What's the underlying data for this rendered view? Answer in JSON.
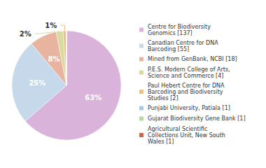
{
  "chart_data": {
    "type": "pie",
    "categories": [
      "Centre for Biodiversity\nGenomics [137]",
      "Canadian Centre for DNA\nBarcoding [55]",
      "Mined from GenBank, NCBI [18]",
      "P.E.S. Modern College of Arts,\nScience and Commerce [4]",
      "Paul Hebert Centre for DNA\nBarcoding and Biodiversity\nStudies [2]",
      "Punjabi University, Patiala [1]",
      "Gujarat Biodiversity Gene Bank [1]",
      "Agricultural Scientific\nCollections Unit, New South\nWales [1]"
    ],
    "values": [
      63,
      25,
      8,
      2,
      1,
      0,
      0,
      0
    ],
    "value_labels": [
      "63%",
      "25%",
      "8%",
      "2%",
      "1%",
      null,
      null,
      null
    ],
    "colors": [
      "#d9b3d9",
      "#c5d9ea",
      "#e8b4a0",
      "#d9d9a0",
      "#f0c080",
      "#a8c8e0",
      "#b8d8a0",
      "#cc6644"
    ],
    "data_labels": true,
    "legend": "right"
  }
}
